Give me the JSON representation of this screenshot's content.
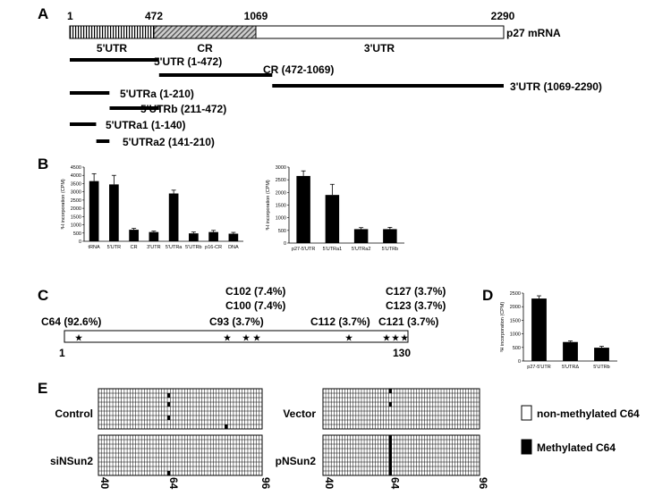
{
  "panels": {
    "a": "A",
    "b": "B",
    "c": "C",
    "d": "D",
    "e": "E"
  },
  "panel_a": {
    "positions": [
      "1",
      "472",
      "1069",
      "2290"
    ],
    "mrna_label": "p27 mRNA",
    "region_labels": [
      "5'UTR",
      "CR",
      "3'UTR"
    ],
    "fragments": [
      {
        "label": "5'UTR (1-472)",
        "start": 1,
        "end": 472
      },
      {
        "label": "CR (472-1069)",
        "start": 472,
        "end": 1069
      },
      {
        "label": "3'UTR (1069-2290)",
        "start": 1069,
        "end": 2290
      },
      {
        "label": "5'UTRa (1-210)",
        "start": 1,
        "end": 210
      },
      {
        "label": "5'UTRb (211-472)",
        "start": 211,
        "end": 472
      },
      {
        "label": "5'UTRa1 (1-140)",
        "start": 1,
        "end": 140
      },
      {
        "label": "5'UTRa2 (141-210)",
        "start": 141,
        "end": 210
      }
    ]
  },
  "panel_c": {
    "start": "1",
    "end": "130",
    "sites": [
      {
        "label": "C64 (92.6%)",
        "pos": 64
      },
      {
        "label": "C93 (3.7%)",
        "pos": 93
      },
      {
        "label": "C100 (7.4%)",
        "pos": 100
      },
      {
        "label": "C102 (7.4%)",
        "pos": 102
      },
      {
        "label": "C112 (3.7%)",
        "pos": 112
      },
      {
        "label": "C121 (3.7%)",
        "pos": 121
      },
      {
        "label": "C123 (3.7%)",
        "pos": 123
      },
      {
        "label": "C127 (3.7%)",
        "pos": 127
      }
    ],
    "star": "★"
  },
  "panel_e": {
    "grids": [
      {
        "label": "Control",
        "methylated": [
          [
            64,
            1
          ],
          [
            64,
            3
          ],
          [
            64,
            6
          ],
          [
            84,
            8
          ]
        ]
      },
      {
        "label": "Vector",
        "methylated": [
          [
            64,
            0
          ],
          [
            64,
            3
          ]
        ]
      },
      {
        "label": "siNSun2",
        "methylated": [
          [
            64,
            8
          ]
        ]
      },
      {
        "label": "pNSun2",
        "methylated": [
          [
            64,
            0
          ],
          [
            64,
            1
          ],
          [
            64,
            2
          ],
          [
            64,
            3
          ],
          [
            64,
            4
          ],
          [
            64,
            5
          ],
          [
            64,
            6
          ],
          [
            64,
            7
          ],
          [
            64,
            8
          ]
        ]
      }
    ],
    "axis_ticks": [
      "40",
      "64",
      "96"
    ],
    "legend": [
      "non-methylated C64",
      "Methylated C64"
    ]
  },
  "chart_data": [
    {
      "type": "bar",
      "categories": [
        "tRNA",
        "5'UTR",
        "CR",
        "3'UTR",
        "5'UTRa",
        "5'UTRb",
        "p16-CR",
        "DNA"
      ],
      "values": [
        3650,
        3450,
        700,
        560,
        2900,
        480,
        560,
        460
      ],
      "errors": [
        450,
        550,
        80,
        60,
        200,
        80,
        100,
        80
      ],
      "ylabel": "³H incorporation (CPM)",
      "yticks": [
        "0",
        "500",
        "1000",
        "1500",
        "2000",
        "2500",
        "3000",
        "3500",
        "4000",
        "4500"
      ],
      "ylim": [
        0,
        4500
      ]
    },
    {
      "type": "bar",
      "categories": [
        "p27-5'UTR",
        "5'UTRa1",
        "5'UTRa2",
        "5'UTRb"
      ],
      "values": [
        2650,
        1900,
        550,
        550
      ],
      "errors": [
        200,
        420,
        60,
        70
      ],
      "ylabel": "³H incorporation (CPM)",
      "yticks": [
        "0",
        "500",
        "1000",
        "1500",
        "2000",
        "2500",
        "3000"
      ],
      "ylim": [
        0,
        3000
      ]
    },
    {
      "type": "bar",
      "categories": [
        "p27-5'UTR",
        "5'UTRΔ",
        "5'UTRb"
      ],
      "values": [
        2300,
        700,
        490
      ],
      "errors": [
        100,
        40,
        50
      ],
      "ylabel": "³H incorporation (CPM)",
      "yticks": [
        "0",
        "500",
        "1000",
        "1500",
        "2000",
        "2500"
      ],
      "ylim": [
        0,
        2500
      ]
    }
  ]
}
